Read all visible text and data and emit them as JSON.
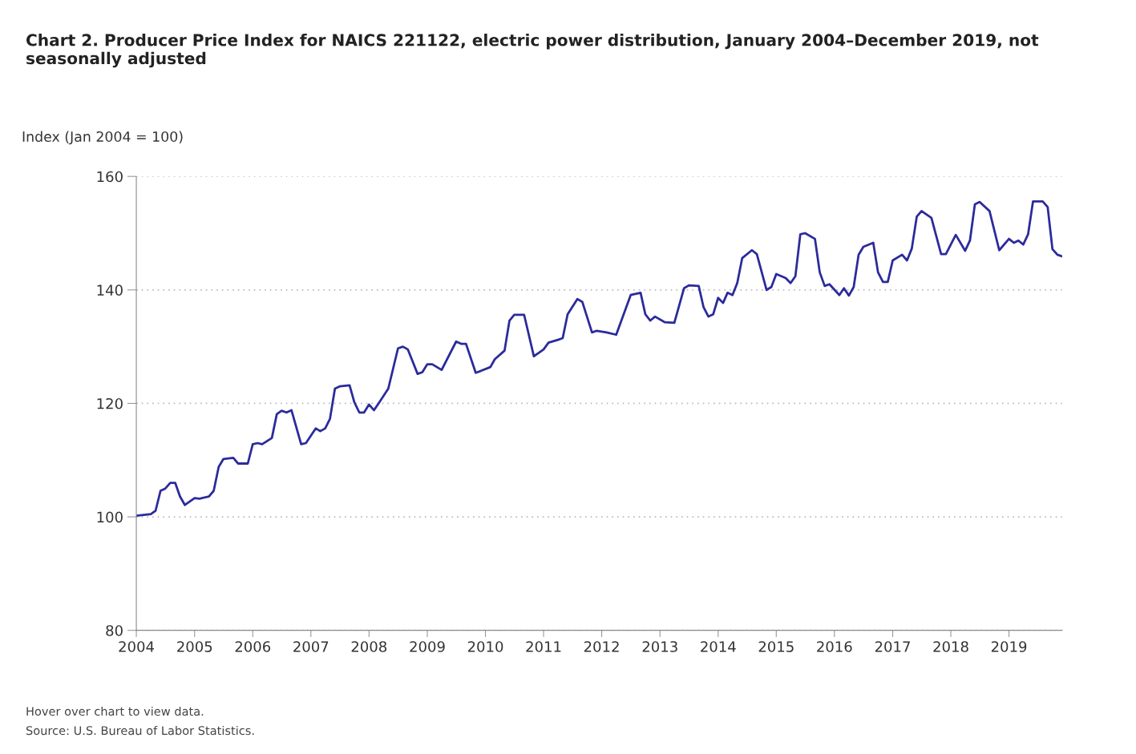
{
  "chart_data": {
    "type": "line",
    "title": "Chart 2. Producer Price Index for NAICS 221122, electric power distribution, January 2004–December 2019, not seasonally adjusted",
    "ylabel": "Index (Jan 2004 = 100)",
    "annotations": [
      "Hover over chart to view data.",
      "Source: U.S. Bureau of Labor Statistics."
    ],
    "x": [
      "2004-01",
      "2004-04",
      "2004-05",
      "2004-06",
      "2004-07",
      "2004-08",
      "2004-09",
      "2004-10",
      "2004-11",
      "2005-01",
      "2005-02",
      "2005-04",
      "2005-05",
      "2005-06",
      "2005-07",
      "2005-09",
      "2005-10",
      "2005-12",
      "2006-01",
      "2006-02",
      "2006-03",
      "2006-05",
      "2006-06",
      "2006-07",
      "2006-08",
      "2006-09",
      "2006-11",
      "2006-12",
      "2007-02",
      "2007-03",
      "2007-04",
      "2007-05",
      "2007-06",
      "2007-07",
      "2007-09",
      "2007-10",
      "2007-11",
      "2007-12",
      "2008-01",
      "2008-02",
      "2008-03",
      "2008-05",
      "2008-07",
      "2008-08",
      "2008-09",
      "2008-11",
      "2008-12",
      "2009-01",
      "2009-02",
      "2009-04",
      "2009-07",
      "2009-08",
      "2009-09",
      "2009-11",
      "2009-12",
      "2010-02",
      "2010-03",
      "2010-05",
      "2010-06",
      "2010-07",
      "2010-09",
      "2010-11",
      "2011-01",
      "2011-02",
      "2011-04",
      "2011-05",
      "2011-06",
      "2011-08",
      "2011-09",
      "2011-11",
      "2011-12",
      "2012-02",
      "2012-04",
      "2012-07",
      "2012-09",
      "2012-10",
      "2012-11",
      "2012-12",
      "2013-02",
      "2013-04",
      "2013-06",
      "2013-07",
      "2013-09",
      "2013-10",
      "2013-11",
      "2013-12",
      "2014-01",
      "2014-02",
      "2014-03",
      "2014-04",
      "2014-05",
      "2014-06",
      "2014-08",
      "2014-09",
      "2014-11",
      "2014-12",
      "2015-01",
      "2015-03",
      "2015-04",
      "2015-05",
      "2015-06",
      "2015-07",
      "2015-09",
      "2015-10",
      "2015-11",
      "2015-12",
      "2016-02",
      "2016-03",
      "2016-04",
      "2016-05",
      "2016-06",
      "2016-07",
      "2016-09",
      "2016-10",
      "2016-11",
      "2016-12",
      "2017-01",
      "2017-03",
      "2017-04",
      "2017-05",
      "2017-06",
      "2017-07",
      "2017-09",
      "2017-11",
      "2017-12",
      "2018-02",
      "2018-04",
      "2018-05",
      "2018-06",
      "2018-07",
      "2018-09",
      "2018-11",
      "2019-01",
      "2019-02",
      "2019-03",
      "2019-04",
      "2019-05",
      "2019-06",
      "2019-08",
      "2019-09",
      "2019-10",
      "2019-11",
      "2019-12"
    ],
    "series": [
      {
        "color": "#2b2b9b",
        "values": [
          100.2,
          100.5,
          101.1,
          104.6,
          105,
          106,
          106,
          103.6,
          102.1,
          103.3,
          103.2,
          103.6,
          104.6,
          108.8,
          110.2,
          110.4,
          109.4,
          109.4,
          112.8,
          113,
          112.8,
          113.9,
          118.1,
          118.7,
          118.4,
          118.8,
          112.8,
          113,
          115.6,
          115.1,
          115.6,
          117.3,
          122.6,
          123,
          123.2,
          120.2,
          118.4,
          118.4,
          119.8,
          118.8,
          120,
          122.6,
          129.7,
          130,
          129.5,
          125.2,
          125.5,
          126.9,
          126.9,
          125.9,
          130.9,
          130.5,
          130.5,
          125.4,
          125.7,
          126.4,
          127.8,
          129.3,
          134.6,
          135.6,
          135.6,
          128.3,
          129.5,
          130.7,
          131.2,
          131.5,
          135.7,
          138.4,
          137.9,
          132.5,
          132.8,
          132.5,
          132.1,
          139.1,
          139.5,
          135.7,
          134.6,
          135.3,
          134.3,
          134.2,
          140.3,
          140.8,
          140.7,
          137,
          135.3,
          135.7,
          138.6,
          137.7,
          139.5,
          139.1,
          141.2,
          145.6,
          147,
          146.3,
          140,
          140.5,
          142.8,
          142.1,
          141.2,
          142.4,
          149.8,
          150,
          149,
          143.1,
          140.7,
          141,
          139.1,
          140.3,
          139,
          140.5,
          146.2,
          147.6,
          148.3,
          143.1,
          141.4,
          141.4,
          145.2,
          146.2,
          145.2,
          147.3,
          152.9,
          153.9,
          152.7,
          146.3,
          146.3,
          149.7,
          146.9,
          148.7,
          155.1,
          155.5,
          153.9,
          147,
          149,
          148.3,
          148.7,
          148,
          149.8,
          155.6,
          155.6,
          154.6,
          147.2,
          146.2,
          145.9
        ]
      }
    ],
    "xlim": [
      "2004-01",
      "2019-12"
    ],
    "xticks": [
      {
        "value": "2004-01",
        "label": "2004"
      },
      {
        "value": "2005-01",
        "label": "2005"
      },
      {
        "value": "2006-01",
        "label": "2006"
      },
      {
        "value": "2007-01",
        "label": "2007"
      },
      {
        "value": "2008-01",
        "label": "2008"
      },
      {
        "value": "2009-01",
        "label": "2009"
      },
      {
        "value": "2010-01",
        "label": "2010"
      },
      {
        "value": "2011-01",
        "label": "2011"
      },
      {
        "value": "2012-01",
        "label": "2012"
      },
      {
        "value": "2013-01",
        "label": "2013"
      },
      {
        "value": "2014-01",
        "label": "2014"
      },
      {
        "value": "2015-01",
        "label": "2015"
      },
      {
        "value": "2016-01",
        "label": "2016"
      },
      {
        "value": "2017-01",
        "label": "2017"
      },
      {
        "value": "2018-01",
        "label": "2018"
      },
      {
        "value": "2019-01",
        "label": "2019"
      }
    ],
    "ylim": [
      80,
      160
    ],
    "yticks": [
      80,
      100,
      120,
      140,
      160
    ],
    "grid": "y",
    "line_style": "solid"
  }
}
